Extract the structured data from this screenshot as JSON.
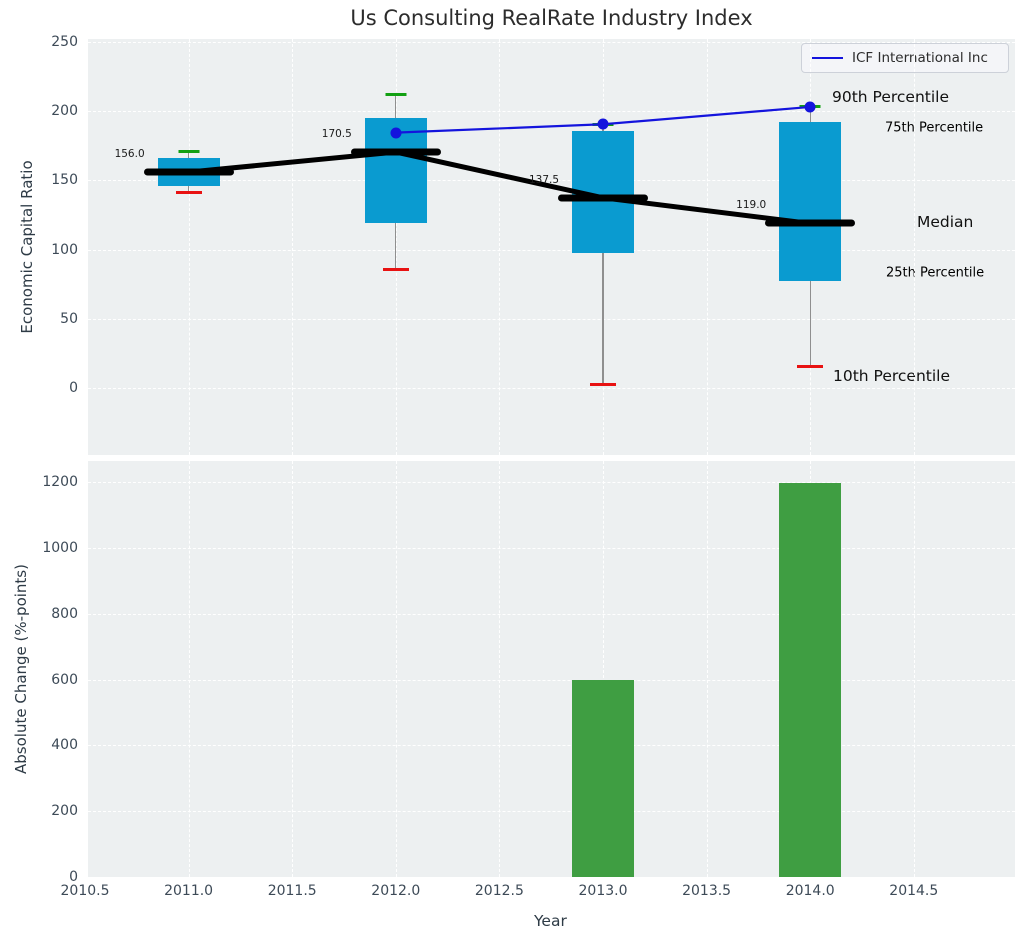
{
  "title": "Us Consulting RealRate Industry Index",
  "legend": {
    "label": "ICF International Inc"
  },
  "colors": {
    "box_fill": "#0a9bd0",
    "bar_fill": "#3f9e42",
    "cap_high_green": "#12a012",
    "cap_low_red": "#e81212",
    "icf_line_blue": "#1414dd",
    "median_black": "#000000",
    "whisker_gray": "#8f8f8f",
    "plot_bg": "#edf0f1",
    "grid_white": "#ffffff",
    "tick_text": "#3d4a57",
    "percentile_cyan": "#1a9bce"
  },
  "chart_data": [
    {
      "type": "box",
      "title": "Us Consulting RealRate Industry Index",
      "ylabel": "Economic Capital Ratio",
      "ylim": [
        -48,
        252
      ],
      "yticks": [
        0,
        50,
        100,
        150,
        200,
        250
      ],
      "grid": true,
      "legend_position": "upper right",
      "boxes": [
        {
          "year": 2011,
          "p10": 141,
          "p25": 146,
          "median": 156,
          "p75": 166,
          "p90": 171,
          "median_label": "156.0"
        },
        {
          "year": 2012,
          "p10": 86,
          "p25": 119.5,
          "median": 170.5,
          "p75": 195,
          "p90": 212,
          "median_label": "170.5"
        },
        {
          "year": 2013,
          "p10": 2.5,
          "p25": 98,
          "median": 137.5,
          "p75": 185.5,
          "p90": 190.5,
          "median_label": "137.5"
        },
        {
          "year": 2014,
          "p10": 16,
          "p25": 77.5,
          "median": 119,
          "p75": 192,
          "p90": 203,
          "median_label": "119.0"
        }
      ],
      "series": [
        {
          "name": "ICF International Inc",
          "x": [
            2012,
            2013,
            2014
          ],
          "y": [
            184.5,
            190.5,
            203
          ]
        }
      ],
      "percentile_labels": {
        "p90": "90th Percentile",
        "p75": "75th Percentile",
        "median": "Median",
        "p25": "25th Percentile",
        "p10": "10th Percentile"
      }
    },
    {
      "type": "bar",
      "xlabel": "Year",
      "ylabel": "Absolute Change (%-points)",
      "xlim": [
        2010.5,
        2015.0
      ],
      "ylim": [
        0,
        1265
      ],
      "grid": true,
      "xticks": [
        2010.5,
        2011.0,
        2011.5,
        2012.0,
        2012.5,
        2013.0,
        2013.5,
        2014.0,
        2014.5
      ],
      "xtick_labels": [
        "2010.5",
        "2011.0",
        "2011.5",
        "2012.0",
        "2012.5",
        "2013.0",
        "2013.5",
        "2014.0",
        "2014.5"
      ],
      "yticks": [
        0,
        200,
        400,
        600,
        800,
        1000,
        1200
      ],
      "x": [
        2013,
        2014
      ],
      "values": [
        598,
        1197
      ]
    }
  ]
}
